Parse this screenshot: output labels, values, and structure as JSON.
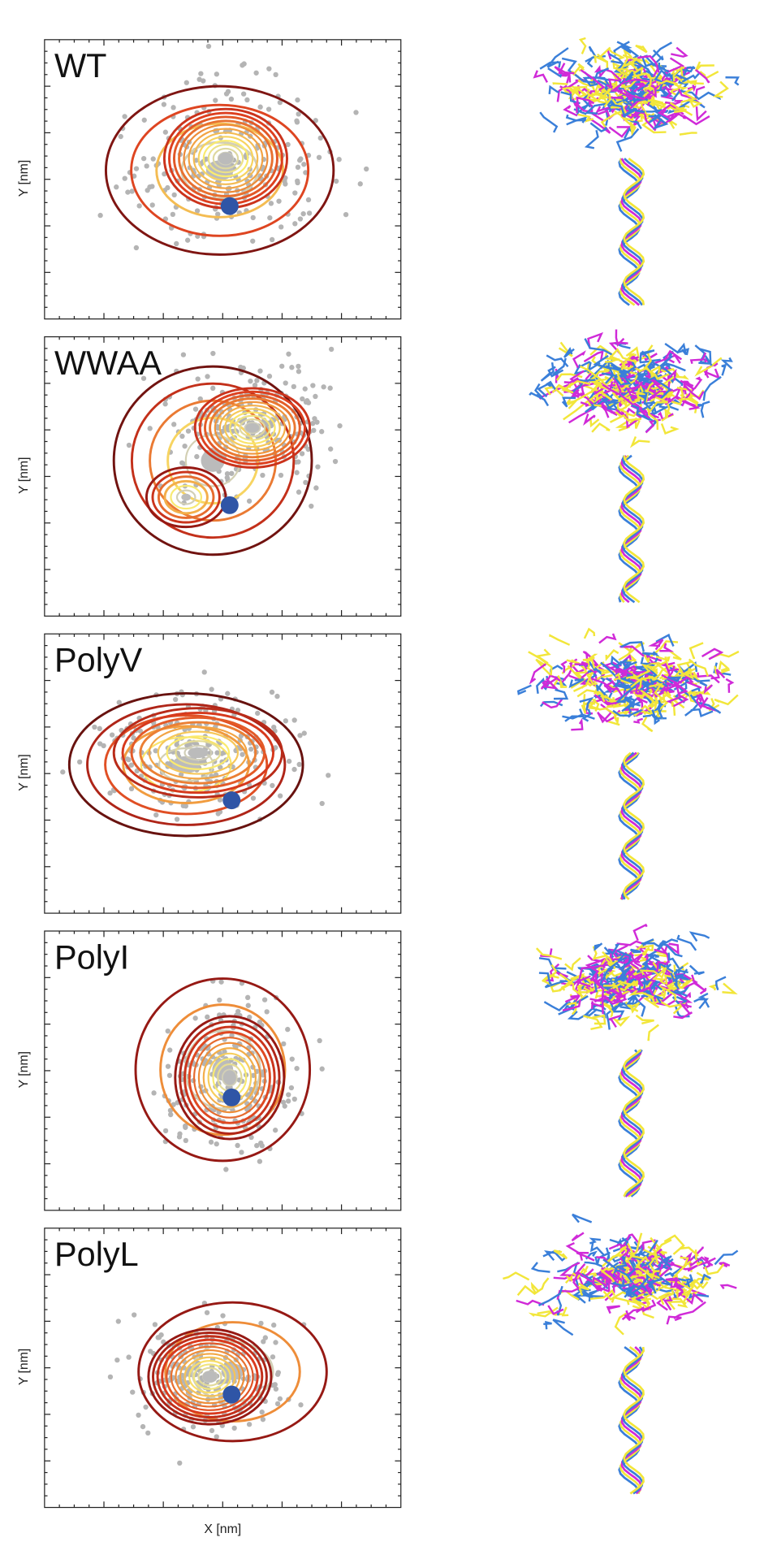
{
  "panels": [
    {
      "label": "WT",
      "y_axis_label": "Y [nm]"
    },
    {
      "label": "WWAA",
      "y_axis_label": "Y [nm]"
    },
    {
      "label": "PolyV",
      "y_axis_label": "Y [nm]"
    },
    {
      "label": "PolyI",
      "y_axis_label": "Y [nm]"
    },
    {
      "label": "PolyL",
      "y_axis_label": "Y [nm]"
    }
  ],
  "x_axis_label": "X [nm]"
}
